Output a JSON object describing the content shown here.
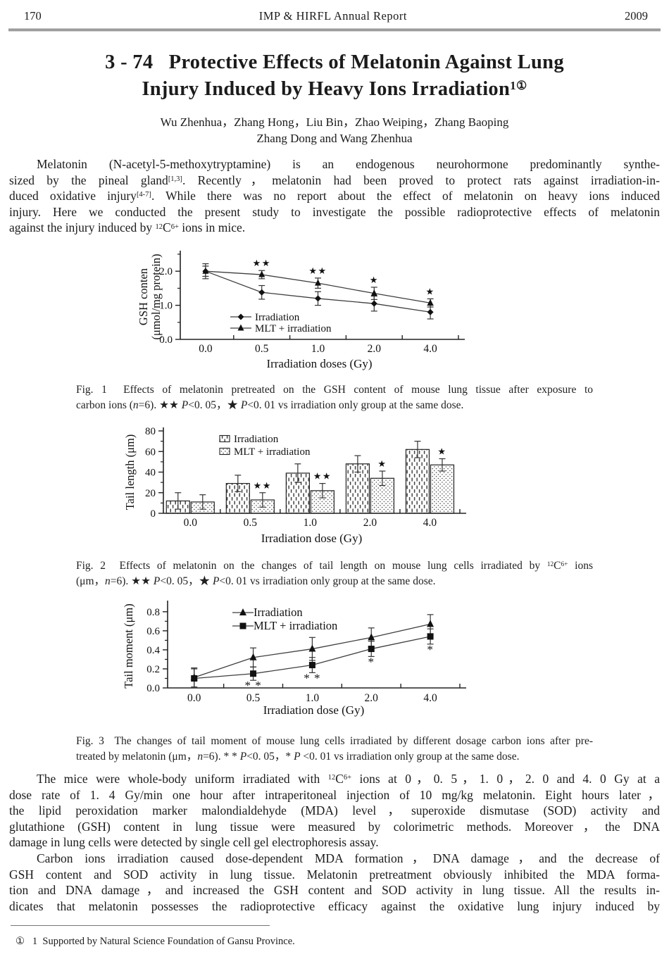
{
  "page": {
    "header": {
      "page_number": "170",
      "journal": "IMP & HIRFL Annual Report",
      "year": "2009"
    },
    "title_lines": [
      {
        "segs": [
          {
            "t": "3 - 74   Protective Effects of Melatonin Against Lung"
          }
        ]
      },
      {
        "segs": [
          {
            "t": "Injury Induced by Heavy Ions Irradiation"
          },
          {
            "t": "1①",
            "sup": true
          }
        ],
        "end": true
      }
    ],
    "authors_lines": [
      {
        "segs": [
          {
            "t": "Wu Zhenhua，Zhang Hong，Liu Bin，Zhao Weiping，Zhang Baoping"
          }
        ]
      },
      {
        "segs": [
          {
            "t": "Zhang Dong and Wang Zhenhua"
          }
        ],
        "end": true
      }
    ],
    "paragraphs": {
      "p1": [
        {
          "indent": true,
          "segs": [
            {
              "t": "Melatonin (N-acetyl-5-methoxytryptamine) is an endogenous neurohormone predominantly synthe-"
            }
          ]
        },
        {
          "segs": [
            {
              "t": "sized by the pineal gland"
            },
            {
              "t": "[1,3]",
              "sup": true
            },
            {
              "t": ". Recently，melatonin had been proved to protect rats against irradiation-in-"
            }
          ]
        },
        {
          "segs": [
            {
              "t": "duced oxidative injury"
            },
            {
              "t": "[4-7]",
              "sup": true
            },
            {
              "t": ". While there was no report about the effect of melatonin on heavy ions induced"
            }
          ]
        },
        {
          "segs": [
            {
              "t": "injury. Here we conducted the present study to investigate the possible radioprotective effects of melatonin"
            }
          ]
        },
        {
          "segs": [
            {
              "t": "against the injury induced by "
            },
            {
              "t": "12",
              "sup": true
            },
            {
              "t": "C"
            },
            {
              "t": "6+",
              "sup": true
            },
            {
              "t": " ions in mice."
            }
          ],
          "end": true
        }
      ],
      "p2": [
        {
          "indent": true,
          "segs": [
            {
              "t": "The mice were whole-body uniform irradiated with "
            },
            {
              "t": "12",
              "sup": true
            },
            {
              "t": "C"
            },
            {
              "t": "6+",
              "sup": true
            },
            {
              "t": " ions at 0，0. 5，1. 0，2. 0 and 4. 0 Gy at a"
            }
          ]
        },
        {
          "segs": [
            {
              "t": "dose rate of 1. 4 Gy/min one hour after intraperitoneal injection of 10 mg/kg melatonin. Eight hours later，"
            }
          ]
        },
        {
          "segs": [
            {
              "t": "the lipid peroxidation marker malondialdehyde (MDA) level，superoxide dismutase (SOD) activity and"
            }
          ]
        },
        {
          "segs": [
            {
              "t": "glutathione (GSH) content in lung tissue were measured by colorimetric methods. Moreover，the DNA"
            }
          ]
        },
        {
          "segs": [
            {
              "t": "damage in lung cells were detected by single cell gel electrophoresis assay."
            }
          ],
          "end": true
        }
      ],
      "p3": [
        {
          "indent": true,
          "segs": [
            {
              "t": "Carbon ions irradiation caused dose-dependent MDA formation，DNA damage，and the decrease of"
            }
          ]
        },
        {
          "segs": [
            {
              "t": "GSH content and SOD activity in lung tissue. Melatonin pretreatment obviously inhibited the MDA forma-"
            }
          ]
        },
        {
          "segs": [
            {
              "t": "tion and DNA damage，and increased the GSH content and SOD activity in lung tissue. All the results in-"
            }
          ]
        },
        {
          "segs": [
            {
              "t": "dicates that melatonin possesses the radioprotective efficacy against the oxidative lung injury induced by"
            }
          ]
        }
      ]
    },
    "footnote_lines": [
      {
        "segs": [
          {
            "t": "①   1  Supported by Natural Science Foundation of Gansu Province."
          }
        ],
        "end": true
      }
    ]
  },
  "figures": [
    {
      "caption_lines": [
        {
          "segs": [
            {
              "t": "Fig. 1  Effects of melatonin pretreated on the GSH content of mouse lung tissue after exposure to"
            }
          ]
        },
        {
          "segs": [
            {
              "t": "carbon ions ("
            },
            {
              "t": "n",
              "i": true
            },
            {
              "t": "=6). ★★ "
            },
            {
              "t": "P",
              "i": true
            },
            {
              "t": "<0. 05，★ "
            },
            {
              "t": "P",
              "i": true
            },
            {
              "t": "<0. 01 vs irradiation only group at the same dose."
            }
          ],
          "end": true
        }
      ]
    },
    {
      "caption_lines": [
        {
          "segs": [
            {
              "t": "Fig. 2  Effects of melatonin on the changes of tail length on mouse lung cells irradiated by "
            },
            {
              "t": "12",
              "sup": true
            },
            {
              "t": "C"
            },
            {
              "t": "6+",
              "sup": true
            },
            {
              "t": " ions"
            }
          ]
        },
        {
          "segs": [
            {
              "t": "(μm，"
            },
            {
              "t": "n",
              "i": true
            },
            {
              "t": "=6). ★★ "
            },
            {
              "t": "P",
              "i": true
            },
            {
              "t": "<0. 05，★ "
            },
            {
              "t": "P",
              "i": true
            },
            {
              "t": "<0. 01 vs irradiation only group at the same dose."
            }
          ],
          "end": true
        }
      ]
    },
    {
      "caption_lines": [
        {
          "segs": [
            {
              "t": "Fig. 3  The changes of tail moment of mouse lung cells irradiated by different dosage carbon ions after pre-"
            }
          ]
        },
        {
          "segs": [
            {
              "t": "treated by melatonin (μm，"
            },
            {
              "t": "n",
              "i": true
            },
            {
              "t": "=6). * * "
            },
            {
              "t": "P",
              "i": true
            },
            {
              "t": "<0. 05，* "
            },
            {
              "t": "P",
              "i": true
            },
            {
              "t": " <0. 01 vs irradiation only group at the same dose."
            }
          ],
          "end": true
        }
      ]
    }
  ],
  "chart_data": [
    {
      "type": "line",
      "categories": [
        "0.0",
        "0.5",
        "1.0",
        "2.0",
        "4.0"
      ],
      "xlabel": "Irradiation doses (Gy)",
      "ylabel_lines": [
        "GSH conten",
        "(μmol/mg protein)"
      ],
      "ylim": [
        0,
        2.5
      ],
      "yticks": [
        {
          "v": 0,
          "t": "0.0"
        },
        {
          "v": 1,
          "t": "1.0"
        },
        {
          "v": 2,
          "t": "2.0"
        }
      ],
      "yminor_step": 0.5,
      "grid": false,
      "legend_pos": "center-left",
      "series": [
        {
          "name": "Irradiation",
          "marker": "diamond",
          "values": [
            2.0,
            1.38,
            1.2,
            1.05,
            0.8
          ],
          "errors": [
            0.22,
            0.2,
            0.2,
            0.22,
            0.2
          ]
        },
        {
          "name": "MLT + irradiation",
          "marker": "triangle",
          "values": [
            2.0,
            1.9,
            1.65,
            1.35,
            1.07
          ],
          "errors": [
            0.15,
            0.12,
            0.15,
            0.18,
            0.12
          ]
        }
      ],
      "annotations": [
        {
          "cat": 1,
          "series": 1,
          "text": "★★",
          "pos": "above"
        },
        {
          "cat": 2,
          "series": 1,
          "text": "★★",
          "pos": "above"
        },
        {
          "cat": 3,
          "series": 1,
          "text": "★",
          "pos": "above"
        },
        {
          "cat": 4,
          "series": 1,
          "text": "★",
          "pos": "above"
        }
      ]
    },
    {
      "type": "bar",
      "categories": [
        "0.0",
        "0.5",
        "1.0",
        "2.0",
        "4.0"
      ],
      "xlabel": "Irradiation dose (Gy)",
      "ylabel_lines": [
        "Tail length (μm)"
      ],
      "ylim": [
        0,
        80
      ],
      "yticks": [
        {
          "v": 0,
          "t": "0"
        },
        {
          "v": 20,
          "t": "20"
        },
        {
          "v": 40,
          "t": "40"
        },
        {
          "v": 60,
          "t": "60"
        },
        {
          "v": 80,
          "t": "80"
        }
      ],
      "yminor_step": 10,
      "grid": false,
      "legend_pos": "top-left",
      "series": [
        {
          "name": "Irradiation",
          "pattern": "vdash",
          "values": [
            12,
            29,
            39,
            48,
            62
          ],
          "errors": [
            8,
            8,
            9,
            8,
            8
          ]
        },
        {
          "name": "MLT + irradiation",
          "pattern": "dots",
          "values": [
            11,
            13,
            22,
            34,
            47
          ],
          "errors": [
            7,
            7,
            7,
            7,
            6
          ]
        }
      ],
      "annotations": [
        {
          "cat": 1,
          "series": 1,
          "text": "★★",
          "pos": "above"
        },
        {
          "cat": 2,
          "series": 1,
          "text": "★★",
          "pos": "above"
        },
        {
          "cat": 3,
          "series": 1,
          "text": "★",
          "pos": "above"
        },
        {
          "cat": 4,
          "series": 1,
          "text": "★",
          "pos": "above"
        }
      ]
    },
    {
      "type": "line",
      "categories": [
        "0.0",
        "0.5",
        "1.0",
        "2.0",
        "4.0"
      ],
      "xlabel": "Irradiation dose (Gy)",
      "ylabel_lines": [
        "Tail moment (μm)"
      ],
      "ylim": [
        0,
        0.88
      ],
      "yticks": [
        {
          "v": 0,
          "t": "0.0"
        },
        {
          "v": 0.2,
          "t": "0.2"
        },
        {
          "v": 0.4,
          "t": "0.4"
        },
        {
          "v": 0.6,
          "t": "0.6"
        },
        {
          "v": 0.8,
          "t": "0.8"
        }
      ],
      "yminor_step": 0.1,
      "grid": false,
      "legend_pos": "top-center",
      "series": [
        {
          "name": "Irradiation",
          "marker": "triangle",
          "values": [
            0.11,
            0.32,
            0.41,
            0.53,
            0.67
          ],
          "errors": [
            0.1,
            0.1,
            0.12,
            0.1,
            0.1
          ]
        },
        {
          "name": "MLT + irradiation",
          "marker": "square",
          "values": [
            0.1,
            0.15,
            0.24,
            0.41,
            0.54
          ],
          "errors": [
            0.1,
            0.07,
            0.08,
            0.08,
            0.08
          ]
        }
      ],
      "annotations": [
        {
          "cat": 1,
          "series": 1,
          "text": "* *",
          "pos": "below"
        },
        {
          "cat": 2,
          "series": 1,
          "text": "* *",
          "pos": "below"
        },
        {
          "cat": 3,
          "series": 1,
          "text": "*",
          "pos": "below"
        },
        {
          "cat": 4,
          "series": 1,
          "text": "*",
          "pos": "below"
        }
      ]
    }
  ]
}
